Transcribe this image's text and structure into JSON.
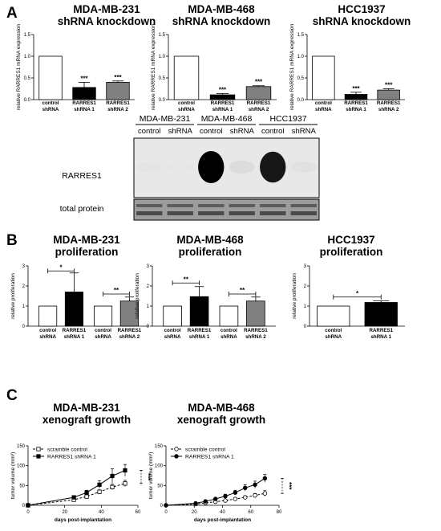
{
  "panel_labels": [
    "A",
    "B",
    "C"
  ],
  "colors": {
    "white_bar": "#ffffff",
    "black_bar": "#000000",
    "grey_bar": "#808080",
    "axis": "#000000"
  },
  "chart_data": [
    {
      "id": "a1",
      "type": "bar",
      "title_lines": [
        "MDA-MB-231",
        "shRNA knockdown"
      ],
      "ylabel": "relative RARRES1 mRNA expression",
      "ylim": [
        0,
        1.5
      ],
      "yticks": [
        "0.0",
        "0.5",
        "1.0",
        "1.5"
      ],
      "categories": [
        [
          "control",
          "shRNA"
        ],
        [
          "RARRES1",
          "shRNA 1"
        ],
        [
          "RARRES1",
          "shRNA 2"
        ]
      ],
      "values": [
        1.0,
        0.28,
        0.4
      ],
      "errors": [
        0,
        0.12,
        0.03
      ],
      "fills": [
        "#ffffff",
        "#000000",
        "#808080"
      ],
      "annotations": [
        "",
        "***",
        "***"
      ]
    },
    {
      "id": "a2",
      "type": "bar",
      "title_lines": [
        "MDA-MB-468",
        "shRNA knockdown"
      ],
      "ylabel": "relative RARRES1 mRNA expression",
      "ylim": [
        0,
        1.5
      ],
      "yticks": [
        "0.0",
        "0.5",
        "1.0",
        "1.5"
      ],
      "categories": [
        [
          "control",
          "shRNA"
        ],
        [
          "RARRES1",
          "shRNA 1"
        ],
        [
          "RARRES1",
          "shRNA 2"
        ]
      ],
      "values": [
        1.0,
        0.11,
        0.3
      ],
      "errors": [
        0,
        0.03,
        0.02
      ],
      "fills": [
        "#ffffff",
        "#000000",
        "#808080"
      ],
      "annotations": [
        "",
        "***",
        "***"
      ]
    },
    {
      "id": "a3",
      "type": "bar",
      "title_lines": [
        "HCC1937",
        "shRNA knockdown"
      ],
      "ylabel": "relative RARRES1 mRNA expression",
      "ylim": [
        0,
        1.5
      ],
      "yticks": [
        "0.0",
        "0.5",
        "1.0",
        "1.5"
      ],
      "categories": [
        [
          "control",
          "shRNA"
        ],
        [
          "RARRES1",
          "shRNA 1"
        ],
        [
          "RARRES1",
          "shRNA 2"
        ]
      ],
      "values": [
        1.0,
        0.12,
        0.22
      ],
      "errors": [
        0,
        0.05,
        0.03
      ],
      "fills": [
        "#ffffff",
        "#000000",
        "#808080"
      ],
      "annotations": [
        "",
        "***",
        "***"
      ]
    },
    {
      "id": "b1",
      "type": "bar",
      "title_lines": [
        "MDA-MB-231",
        "proliferation"
      ],
      "ylabel": "relative proliferation",
      "ylim": [
        0,
        3
      ],
      "yticks": [
        "0",
        "1",
        "2",
        "3"
      ],
      "categories": [
        [
          "control",
          "shRNA"
        ],
        [
          "RARRES1",
          "shRNA 1"
        ],
        [
          "control",
          "shRNA"
        ],
        [
          "RARRES1",
          "shRNA 2"
        ]
      ],
      "values": [
        1.0,
        1.7,
        1.0,
        1.25
      ],
      "errors": [
        0,
        0.95,
        0,
        0.2
      ],
      "fills": [
        "#ffffff",
        "#000000",
        "#ffffff",
        "#808080"
      ],
      "brackets": [
        {
          "from": 0,
          "to": 1,
          "y": 2.75,
          "label": "*"
        },
        {
          "from": 2,
          "to": 3,
          "y": 1.6,
          "label": "**"
        }
      ]
    },
    {
      "id": "b2",
      "type": "bar",
      "title_lines": [
        "MDA-MB-468",
        "proliferation"
      ],
      "ylabel": "relative proliferation",
      "ylim": [
        0,
        3
      ],
      "yticks": [
        "0",
        "1",
        "2",
        "3"
      ],
      "categories": [
        [
          "control",
          "shRNA"
        ],
        [
          "RARRES1",
          "shRNA 1"
        ],
        [
          "control",
          "shRNA"
        ],
        [
          "RARRES1",
          "shRNA 2"
        ]
      ],
      "values": [
        1.0,
        1.47,
        1.0,
        1.25
      ],
      "errors": [
        0,
        0.5,
        0,
        0.2
      ],
      "fills": [
        "#ffffff",
        "#000000",
        "#ffffff",
        "#808080"
      ],
      "brackets": [
        {
          "from": 0,
          "to": 1,
          "y": 2.15,
          "label": "**"
        },
        {
          "from": 2,
          "to": 3,
          "y": 1.6,
          "label": "**"
        }
      ]
    },
    {
      "id": "b3",
      "type": "bar",
      "title_lines": [
        "HCC1937",
        "proliferation"
      ],
      "ylabel": "relative proliferation",
      "ylim": [
        0,
        3
      ],
      "yticks": [
        "0",
        "1",
        "2",
        "3"
      ],
      "categories": [
        [
          "control",
          "shRNA"
        ],
        [
          "RARRES1",
          "shRNA 1"
        ]
      ],
      "values": [
        1.0,
        1.18
      ],
      "errors": [
        0,
        0.08
      ],
      "fills": [
        "#ffffff",
        "#000000"
      ],
      "brackets": [
        {
          "from": 0,
          "to": 1,
          "y": 1.45,
          "label": "*"
        }
      ]
    },
    {
      "id": "c1",
      "type": "line",
      "title_lines": [
        "MDA-MB-231",
        "xenograft growth"
      ],
      "ylabel": "tumor volume (mm³)",
      "xlabel": "days post-implantation",
      "xlim": [
        0,
        60
      ],
      "ylim": [
        0,
        150
      ],
      "xticks": [
        "0",
        "20",
        "40",
        "60"
      ],
      "yticks": [
        "0",
        "50",
        "100",
        "150"
      ],
      "series": [
        {
          "name": "scramble control",
          "marker": "open-square",
          "dash": true,
          "x": [
            0,
            25,
            32,
            39,
            46,
            53
          ],
          "y": [
            0,
            14,
            22,
            34,
            46,
            55
          ],
          "err": [
            0,
            3,
            4,
            5,
            7,
            8
          ]
        },
        {
          "name": "RARRES1 shRNA 1",
          "marker": "filled-square",
          "dash": false,
          "x": [
            0,
            25,
            32,
            39,
            46,
            53
          ],
          "y": [
            0,
            20,
            32,
            52,
            74,
            88
          ],
          "err": [
            0,
            4,
            6,
            10,
            18,
            15
          ]
        }
      ],
      "significance": "***"
    },
    {
      "id": "c2",
      "type": "line",
      "title_lines": [
        "MDA-MB-468",
        "xenograft growth"
      ],
      "ylabel": "tumor volume (mm³)",
      "xlabel": "days post-implantation",
      "xlim": [
        0,
        80
      ],
      "ylim": [
        0,
        150
      ],
      "xticks": [
        "0",
        "20",
        "40",
        "60",
        "80"
      ],
      "yticks": [
        "0",
        "50",
        "100",
        "150"
      ],
      "series": [
        {
          "name": "scramble control",
          "marker": "open-circle",
          "dash": true,
          "x": [
            0,
            21,
            28,
            35,
            42,
            49,
            56,
            63,
            70
          ],
          "y": [
            0,
            3,
            6,
            9,
            12,
            16,
            20,
            25,
            30
          ],
          "err": [
            0,
            1,
            2,
            2,
            3,
            3,
            4,
            5,
            7
          ]
        },
        {
          "name": "RARRES1 shRNA 1",
          "marker": "filled-circle",
          "dash": false,
          "x": [
            0,
            21,
            28,
            35,
            42,
            49,
            56,
            63,
            70
          ],
          "y": [
            0,
            5,
            10,
            16,
            23,
            32,
            44,
            52,
            68
          ],
          "err": [
            0,
            2,
            3,
            4,
            5,
            6,
            8,
            9,
            10
          ]
        }
      ],
      "significance": "***"
    }
  ],
  "western_blot": {
    "cell_lines": [
      "MDA-MB-231",
      "MDA-MB-468",
      "HCC1937"
    ],
    "columns": [
      "control",
      "shRNA",
      "control",
      "shRNA",
      "control",
      "shRNA"
    ],
    "rows": [
      "RARRES1",
      "total protein"
    ],
    "band_intensity": [
      0.05,
      0.03,
      1.0,
      0.15,
      0.95,
      0.08
    ]
  }
}
